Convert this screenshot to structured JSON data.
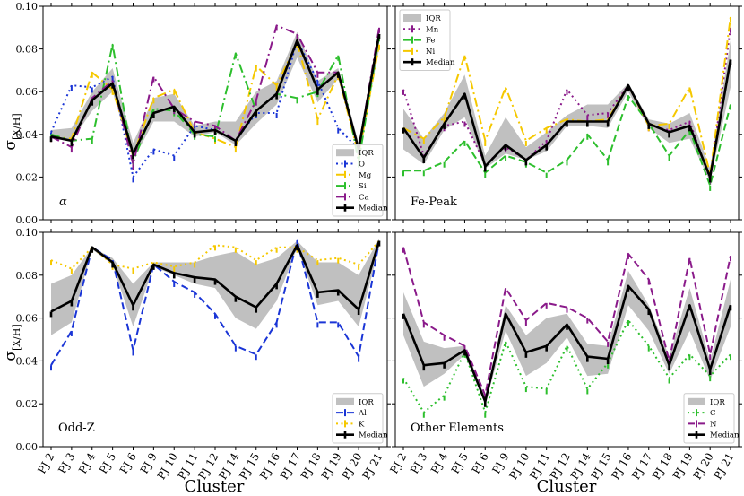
{
  "figure": {
    "xlabel": "Cluster",
    "ylabel": "σ",
    "ylabel_sub": "[X/H]",
    "categories": [
      "PJ 2",
      "PJ 3",
      "PJ 4",
      "PJ 5",
      "PJ 6",
      "PJ 9",
      "PJ 10",
      "PJ 11",
      "PJ 12",
      "PJ 14",
      "PJ 15",
      "PJ 16",
      "PJ 17",
      "PJ 18",
      "PJ 19",
      "PJ 20",
      "PJ 21"
    ]
  },
  "chart_data": [
    {
      "type": "line",
      "panel_label": "α",
      "ylim": [
        0,
        0.1
      ],
      "yticks": [
        0.0,
        0.02,
        0.04,
        0.06,
        0.08,
        0.1
      ],
      "ytick_labels": [
        "0.00",
        "0.02",
        "0.04",
        "0.06",
        "0.08",
        "0.10"
      ],
      "legend_position": "bottom-right",
      "iqr": {
        "name": "IQR",
        "color": "#c0c0c0",
        "low": [
          0.038,
          0.037,
          0.051,
          0.06,
          0.028,
          0.046,
          0.046,
          0.039,
          0.041,
          0.035,
          0.045,
          0.054,
          0.076,
          0.055,
          0.066,
          0.031,
          0.08
        ],
        "high": [
          0.042,
          0.043,
          0.06,
          0.071,
          0.036,
          0.057,
          0.059,
          0.044,
          0.046,
          0.046,
          0.06,
          0.065,
          0.088,
          0.065,
          0.071,
          0.036,
          0.09
        ]
      },
      "median": {
        "name": "Median",
        "color": "#000000",
        "values": [
          0.039,
          0.037,
          0.056,
          0.064,
          0.031,
          0.05,
          0.053,
          0.041,
          0.042,
          0.037,
          0.051,
          0.059,
          0.084,
          0.061,
          0.069,
          0.033,
          0.087
        ]
      },
      "series": [
        {
          "name": "O",
          "color": "#1a35d6",
          "dash": "dot",
          "values": [
            0.041,
            0.063,
            0.062,
            0.067,
            0.02,
            0.033,
            0.03,
            0.044,
            0.042,
            0.037,
            0.05,
            0.05,
            0.084,
            0.065,
            0.043,
            0.033,
            0.087
          ]
        },
        {
          "name": "Mg",
          "color": "#f5c800",
          "dash": "dashdot",
          "values": [
            0.039,
            0.038,
            0.069,
            0.061,
            0.03,
            0.057,
            0.061,
            0.041,
            0.038,
            0.034,
            0.072,
            0.063,
            0.083,
            0.047,
            0.068,
            0.03,
            0.082
          ]
        },
        {
          "name": "Si",
          "color": "#2dbf2d",
          "dash": "dashdot",
          "values": [
            0.04,
            0.037,
            0.038,
            0.082,
            0.027,
            0.052,
            0.051,
            0.04,
            0.039,
            0.078,
            0.051,
            0.059,
            0.057,
            0.06,
            0.077,
            0.027,
            0.086
          ]
        },
        {
          "name": "Ca",
          "color": "#8a1a8a",
          "dash": "dashdot",
          "values": [
            0.039,
            0.034,
            0.057,
            0.065,
            0.026,
            0.067,
            0.052,
            0.046,
            0.044,
            0.037,
            0.056,
            0.091,
            0.087,
            0.069,
            0.069,
            0.033,
            0.09
          ]
        }
      ]
    },
    {
      "type": "line",
      "panel_label": "Fe-Peak",
      "ylim": [
        0,
        0.1
      ],
      "yticks": [
        0.0,
        0.02,
        0.04,
        0.06,
        0.08,
        0.1
      ],
      "ytick_labels": [
        "",
        "",
        "",
        "",
        "",
        ""
      ],
      "legend_position": "top-left",
      "iqr": {
        "name": "IQR",
        "color": "#c0c0c0",
        "low": [
          0.033,
          0.026,
          0.042,
          0.048,
          0.024,
          0.031,
          0.028,
          0.032,
          0.044,
          0.044,
          0.043,
          0.06,
          0.043,
          0.036,
          0.038,
          0.018,
          0.062
        ],
        "high": [
          0.052,
          0.038,
          0.05,
          0.068,
          0.03,
          0.048,
          0.034,
          0.041,
          0.049,
          0.054,
          0.054,
          0.064,
          0.047,
          0.045,
          0.05,
          0.024,
          0.084
        ]
      },
      "median": {
        "name": "Median",
        "color": "#000000",
        "values": [
          0.043,
          0.029,
          0.045,
          0.059,
          0.025,
          0.035,
          0.028,
          0.035,
          0.046,
          0.046,
          0.046,
          0.063,
          0.045,
          0.041,
          0.044,
          0.02,
          0.075
        ]
      },
      "series": [
        {
          "name": "Mn",
          "color": "#8a1a8a",
          "dash": "dot",
          "values": [
            0.061,
            0.03,
            0.044,
            0.046,
            0.026,
            0.034,
            0.028,
            0.037,
            0.061,
            0.049,
            0.05,
            0.063,
            0.044,
            0.042,
            0.046,
            0.019,
            0.09
          ]
        },
        {
          "name": "Fe",
          "color": "#2dbf2d",
          "dash": "dash",
          "values": [
            0.023,
            0.023,
            0.027,
            0.037,
            0.022,
            0.03,
            0.027,
            0.022,
            0.028,
            0.04,
            0.028,
            0.058,
            0.045,
            0.03,
            0.042,
            0.016,
            0.054
          ]
        },
        {
          "name": "Ni",
          "color": "#f5c800",
          "dash": "dashdot",
          "values": [
            0.043,
            0.038,
            0.048,
            0.077,
            0.037,
            0.062,
            0.037,
            0.043,
            0.047,
            0.046,
            0.047,
            0.063,
            0.044,
            0.045,
            0.062,
            0.021,
            0.095
          ]
        }
      ]
    },
    {
      "type": "line",
      "panel_label": "Odd-Z",
      "ylim": [
        0,
        0.1
      ],
      "yticks": [
        0.0,
        0.02,
        0.04,
        0.06,
        0.08,
        0.1
      ],
      "ytick_labels": [
        "0.00",
        "0.02",
        "0.04",
        "0.06",
        "0.08",
        "0.10"
      ],
      "legend_position": "bottom-right",
      "iqr": {
        "name": "IQR",
        "color": "#c0c0c0",
        "low": [
          0.052,
          0.058,
          0.092,
          0.085,
          0.056,
          0.084,
          0.08,
          0.076,
          0.074,
          0.06,
          0.055,
          0.068,
          0.093,
          0.066,
          0.068,
          0.056,
          0.093
        ],
        "high": [
          0.076,
          0.08,
          0.093,
          0.088,
          0.076,
          0.086,
          0.086,
          0.086,
          0.089,
          0.091,
          0.085,
          0.088,
          0.096,
          0.086,
          0.086,
          0.08,
          0.097
        ]
      },
      "median": {
        "name": "Median",
        "color": "#000000",
        "values": [
          0.063,
          0.068,
          0.093,
          0.086,
          0.066,
          0.085,
          0.081,
          0.079,
          0.078,
          0.07,
          0.065,
          0.076,
          0.094,
          0.072,
          0.073,
          0.064,
          0.096
        ]
      },
      "series": [
        {
          "name": "Al",
          "color": "#1a35d6",
          "dash": "dash",
          "values": [
            0.038,
            0.054,
            0.093,
            0.087,
            0.045,
            0.085,
            0.077,
            0.072,
            0.062,
            0.047,
            0.043,
            0.058,
            0.096,
            0.058,
            0.058,
            0.042,
            0.096
          ]
        },
        {
          "name": "K",
          "color": "#f5c800",
          "dash": "dot",
          "values": [
            0.087,
            0.083,
            0.093,
            0.085,
            0.083,
            0.086,
            0.084,
            0.086,
            0.094,
            0.093,
            0.087,
            0.093,
            0.093,
            0.087,
            0.088,
            0.085,
            0.096
          ]
        }
      ]
    },
    {
      "type": "line",
      "panel_label": "Other Elements",
      "ylim": [
        0,
        0.1
      ],
      "yticks": [
        0.0,
        0.02,
        0.04,
        0.06,
        0.08,
        0.1
      ],
      "ytick_labels": [
        "",
        "",
        "",
        "",
        "",
        ""
      ],
      "legend_position": "bottom-right",
      "iqr": {
        "name": "IQR",
        "color": "#c0c0c0",
        "low": [
          0.052,
          0.028,
          0.034,
          0.043,
          0.02,
          0.054,
          0.033,
          0.039,
          0.051,
          0.033,
          0.034,
          0.066,
          0.054,
          0.034,
          0.054,
          0.031,
          0.056
        ],
        "high": [
          0.072,
          0.049,
          0.046,
          0.047,
          0.023,
          0.066,
          0.052,
          0.06,
          0.062,
          0.048,
          0.047,
          0.082,
          0.066,
          0.042,
          0.074,
          0.04,
          0.078
        ]
      },
      "median": {
        "name": "Median",
        "color": "#000000",
        "values": [
          0.062,
          0.038,
          0.039,
          0.045,
          0.021,
          0.062,
          0.044,
          0.047,
          0.057,
          0.042,
          0.041,
          0.075,
          0.064,
          0.038,
          0.066,
          0.036,
          0.066
        ]
      },
      "series": [
        {
          "name": "C",
          "color": "#2dbf2d",
          "dash": "dot",
          "values": [
            0.032,
            0.016,
            0.024,
            0.044,
            0.016,
            0.049,
            0.028,
            0.027,
            0.047,
            0.027,
            0.039,
            0.059,
            0.047,
            0.032,
            0.043,
            0.033,
            0.043
          ]
        },
        {
          "name": "N",
          "color": "#8a1a8a",
          "dash": "dash",
          "values": [
            0.093,
            0.058,
            0.052,
            0.047,
            0.024,
            0.074,
            0.059,
            0.067,
            0.065,
            0.06,
            0.049,
            0.09,
            0.078,
            0.04,
            0.088,
            0.043,
            0.089
          ]
        }
      ]
    }
  ]
}
